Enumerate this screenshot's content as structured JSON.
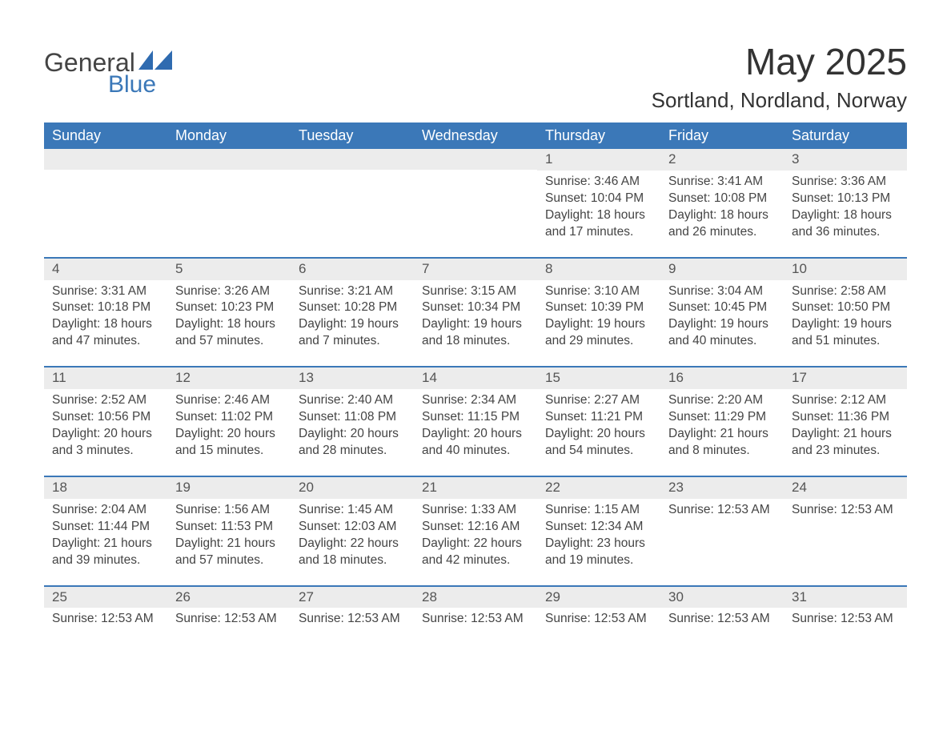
{
  "logo": {
    "word1": "General",
    "word2": "Blue",
    "sail_color": "#2f6bb0"
  },
  "title": "May 2025",
  "location": "Sortland, Nordland, Norway",
  "dow": [
    "Sunday",
    "Monday",
    "Tuesday",
    "Wednesday",
    "Thursday",
    "Friday",
    "Saturday"
  ],
  "header_bg": "#3b78b8",
  "header_fg": "#ffffff",
  "daynum_bg": "#ececec",
  "border_color": "#3b78b8",
  "text_color": "#444444",
  "weeks": [
    [
      {
        "n": "",
        "lines": []
      },
      {
        "n": "",
        "lines": []
      },
      {
        "n": "",
        "lines": []
      },
      {
        "n": "",
        "lines": []
      },
      {
        "n": "1",
        "lines": [
          "Sunrise: 3:46 AM",
          "Sunset: 10:04 PM",
          "Daylight: 18 hours and 17 minutes."
        ]
      },
      {
        "n": "2",
        "lines": [
          "Sunrise: 3:41 AM",
          "Sunset: 10:08 PM",
          "Daylight: 18 hours and 26 minutes."
        ]
      },
      {
        "n": "3",
        "lines": [
          "Sunrise: 3:36 AM",
          "Sunset: 10:13 PM",
          "Daylight: 18 hours and 36 minutes."
        ]
      }
    ],
    [
      {
        "n": "4",
        "lines": [
          "Sunrise: 3:31 AM",
          "Sunset: 10:18 PM",
          "Daylight: 18 hours and 47 minutes."
        ]
      },
      {
        "n": "5",
        "lines": [
          "Sunrise: 3:26 AM",
          "Sunset: 10:23 PM",
          "Daylight: 18 hours and 57 minutes."
        ]
      },
      {
        "n": "6",
        "lines": [
          "Sunrise: 3:21 AM",
          "Sunset: 10:28 PM",
          "Daylight: 19 hours and 7 minutes."
        ]
      },
      {
        "n": "7",
        "lines": [
          "Sunrise: 3:15 AM",
          "Sunset: 10:34 PM",
          "Daylight: 19 hours and 18 minutes."
        ]
      },
      {
        "n": "8",
        "lines": [
          "Sunrise: 3:10 AM",
          "Sunset: 10:39 PM",
          "Daylight: 19 hours and 29 minutes."
        ]
      },
      {
        "n": "9",
        "lines": [
          "Sunrise: 3:04 AM",
          "Sunset: 10:45 PM",
          "Daylight: 19 hours and 40 minutes."
        ]
      },
      {
        "n": "10",
        "lines": [
          "Sunrise: 2:58 AM",
          "Sunset: 10:50 PM",
          "Daylight: 19 hours and 51 minutes."
        ]
      }
    ],
    [
      {
        "n": "11",
        "lines": [
          "Sunrise: 2:52 AM",
          "Sunset: 10:56 PM",
          "Daylight: 20 hours and 3 minutes."
        ]
      },
      {
        "n": "12",
        "lines": [
          "Sunrise: 2:46 AM",
          "Sunset: 11:02 PM",
          "Daylight: 20 hours and 15 minutes."
        ]
      },
      {
        "n": "13",
        "lines": [
          "Sunrise: 2:40 AM",
          "Sunset: 11:08 PM",
          "Daylight: 20 hours and 28 minutes."
        ]
      },
      {
        "n": "14",
        "lines": [
          "Sunrise: 2:34 AM",
          "Sunset: 11:15 PM",
          "Daylight: 20 hours and 40 minutes."
        ]
      },
      {
        "n": "15",
        "lines": [
          "Sunrise: 2:27 AM",
          "Sunset: 11:21 PM",
          "Daylight: 20 hours and 54 minutes."
        ]
      },
      {
        "n": "16",
        "lines": [
          "Sunrise: 2:20 AM",
          "Sunset: 11:29 PM",
          "Daylight: 21 hours and 8 minutes."
        ]
      },
      {
        "n": "17",
        "lines": [
          "Sunrise: 2:12 AM",
          "Sunset: 11:36 PM",
          "Daylight: 21 hours and 23 minutes."
        ]
      }
    ],
    [
      {
        "n": "18",
        "lines": [
          "Sunrise: 2:04 AM",
          "Sunset: 11:44 PM",
          "Daylight: 21 hours and 39 minutes."
        ]
      },
      {
        "n": "19",
        "lines": [
          "Sunrise: 1:56 AM",
          "Sunset: 11:53 PM",
          "Daylight: 21 hours and 57 minutes."
        ]
      },
      {
        "n": "20",
        "lines": [
          "Sunrise: 1:45 AM",
          "Sunset: 12:03 AM",
          "Daylight: 22 hours and 18 minutes."
        ]
      },
      {
        "n": "21",
        "lines": [
          "Sunrise: 1:33 AM",
          "Sunset: 12:16 AM",
          "Daylight: 22 hours and 42 minutes."
        ]
      },
      {
        "n": "22",
        "lines": [
          "Sunrise: 1:15 AM",
          "Sunset: 12:34 AM",
          "Daylight: 23 hours and 19 minutes."
        ]
      },
      {
        "n": "23",
        "lines": [
          "Sunrise: 12:53 AM"
        ]
      },
      {
        "n": "24",
        "lines": [
          "Sunrise: 12:53 AM"
        ]
      }
    ],
    [
      {
        "n": "25",
        "lines": [
          "Sunrise: 12:53 AM"
        ]
      },
      {
        "n": "26",
        "lines": [
          "Sunrise: 12:53 AM"
        ]
      },
      {
        "n": "27",
        "lines": [
          "Sunrise: 12:53 AM"
        ]
      },
      {
        "n": "28",
        "lines": [
          "Sunrise: 12:53 AM"
        ]
      },
      {
        "n": "29",
        "lines": [
          "Sunrise: 12:53 AM"
        ]
      },
      {
        "n": "30",
        "lines": [
          "Sunrise: 12:53 AM"
        ]
      },
      {
        "n": "31",
        "lines": [
          "Sunrise: 12:53 AM"
        ]
      }
    ]
  ]
}
